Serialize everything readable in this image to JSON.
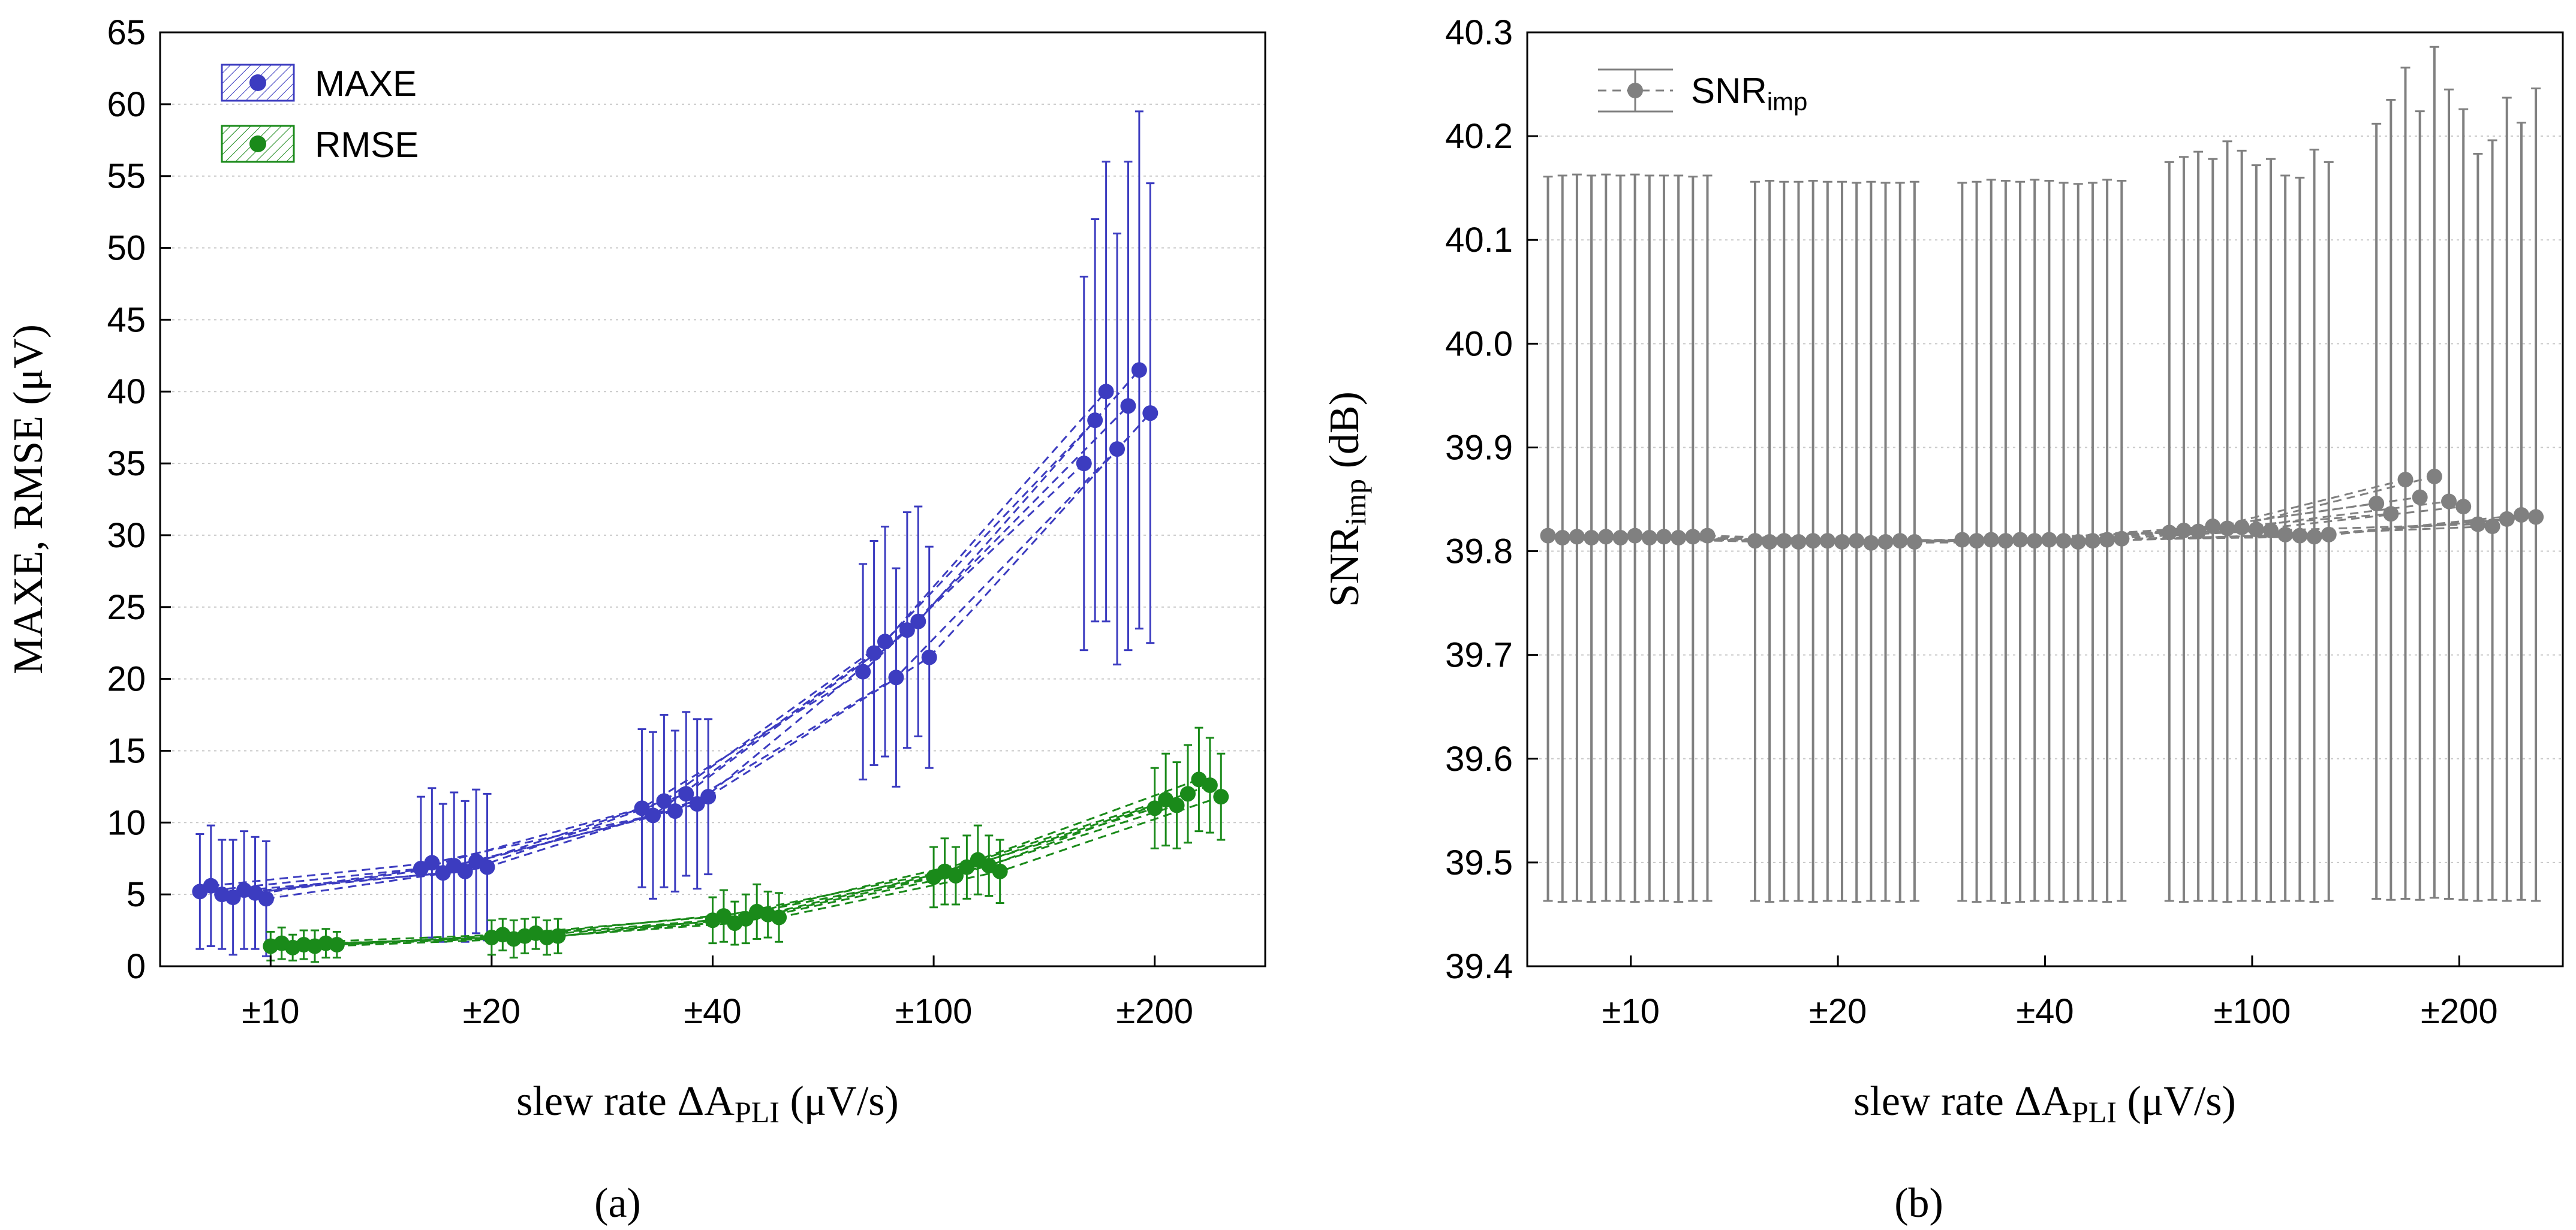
{
  "colors": {
    "maxe": "#3c3cc0",
    "rmse": "#1a8a1a",
    "snr": "#808080",
    "grid": "#c9c9c9"
  },
  "chart_data": [
    {
      "panel_label": "(a)",
      "type": "line",
      "ylabel": "MAXE, RMSE (μV)",
      "xlabel_main": "slew rate ΔA",
      "xlabel_sub": "PLI",
      "xlabel_unit": " (μV/s)",
      "categories": [
        "±10",
        "±20",
        "±40",
        "±100",
        "±200"
      ],
      "ylim": [
        0,
        65
      ],
      "yticks": [
        "0",
        "5",
        "10",
        "15",
        "20",
        "25",
        "30",
        "35",
        "40",
        "45",
        "50",
        "55",
        "60",
        "65"
      ],
      "legend": [
        "MAXE",
        "RMSE"
      ],
      "series": [
        {
          "name": "MAXE",
          "x": [
            -0.32,
            -0.27,
            -0.22,
            -0.17,
            -0.12,
            -0.07,
            -0.02,
            0.68,
            0.73,
            0.78,
            0.83,
            0.88,
            0.93,
            0.98,
            1.68,
            1.73,
            1.78,
            1.83,
            1.88,
            1.93,
            1.98,
            2.68,
            2.73,
            2.78,
            2.83,
            2.88,
            2.93,
            2.98,
            3.68,
            3.73,
            3.78,
            3.83,
            3.88,
            3.93,
            3.98
          ],
          "y": [
            5.2,
            5.6,
            5.0,
            4.8,
            5.3,
            5.1,
            4.7,
            6.8,
            7.2,
            6.5,
            7.0,
            6.6,
            7.3,
            6.9,
            11.0,
            10.5,
            11.5,
            10.8,
            12.0,
            11.3,
            11.8,
            20.5,
            21.8,
            22.6,
            20.1,
            23.4,
            24.0,
            21.5,
            35.0,
            38.0,
            40.0,
            36.0,
            39.0,
            41.5,
            38.5
          ],
          "err": [
            4.0,
            4.2,
            3.8,
            4.0,
            4.1,
            3.9,
            4.0,
            5.0,
            5.2,
            4.8,
            5.1,
            4.9,
            5.0,
            5.1,
            5.5,
            5.8,
            6.0,
            5.6,
            5.7,
            5.9,
            5.4,
            7.5,
            7.8,
            8.0,
            7.6,
            8.2,
            8.0,
            7.7,
            13.0,
            14.0,
            16.0,
            15.0,
            17.0,
            18.0,
            16.0
          ]
        },
        {
          "name": "RMSE",
          "x": [
            0.0,
            0.05,
            0.1,
            0.15,
            0.2,
            0.25,
            0.3,
            1.0,
            1.05,
            1.1,
            1.15,
            1.2,
            1.25,
            1.3,
            2.0,
            2.05,
            2.1,
            2.15,
            2.2,
            2.25,
            2.3,
            3.0,
            3.05,
            3.1,
            3.15,
            3.2,
            3.25,
            3.3,
            4.0,
            4.05,
            4.1,
            4.15,
            4.2,
            4.25,
            4.3
          ],
          "y": [
            1.4,
            1.6,
            1.3,
            1.5,
            1.4,
            1.6,
            1.5,
            2.0,
            2.2,
            1.9,
            2.1,
            2.3,
            2.0,
            2.1,
            3.2,
            3.5,
            3.0,
            3.3,
            3.8,
            3.6,
            3.4,
            6.2,
            6.6,
            6.3,
            6.9,
            7.4,
            7.0,
            6.6,
            11.0,
            11.6,
            11.2,
            12.0,
            13.0,
            12.6,
            11.8
          ],
          "err": [
            1.0,
            1.1,
            0.9,
            1.0,
            1.1,
            1.0,
            0.9,
            1.2,
            1.1,
            1.3,
            1.2,
            1.1,
            1.2,
            1.2,
            1.6,
            1.8,
            1.5,
            1.7,
            1.9,
            1.6,
            1.7,
            2.1,
            2.3,
            2.0,
            2.2,
            2.4,
            2.1,
            2.2,
            2.8,
            3.2,
            3.0,
            3.4,
            3.6,
            3.3,
            3.0
          ]
        }
      ]
    },
    {
      "panel_label": "(b)",
      "type": "line",
      "ylabel_main": "SNR",
      "ylabel_sub": "imp",
      "ylabel_unit": " (dB)",
      "xlabel_main": "slew rate ΔA",
      "xlabel_sub": "PLI",
      "xlabel_unit": " (μV/s)",
      "categories": [
        "±10",
        "±20",
        "±40",
        "±100",
        "±200"
      ],
      "ylim": [
        39.4,
        40.3
      ],
      "yticks": [
        "39.4",
        "39.5",
        "39.6",
        "39.7",
        "39.8",
        "39.9",
        "40.0",
        "40.1",
        "40.2",
        "40.3"
      ],
      "legend_main": "SNR",
      "legend_sub": "imp",
      "series": [
        {
          "name": "SNRimp",
          "x": [
            -0.4,
            -0.33,
            -0.26,
            -0.19,
            -0.12,
            -0.05,
            0.02,
            0.09,
            0.16,
            0.23,
            0.3,
            0.37,
            0.6,
            0.67,
            0.74,
            0.81,
            0.88,
            0.95,
            1.02,
            1.09,
            1.16,
            1.23,
            1.3,
            1.37,
            1.6,
            1.67,
            1.74,
            1.81,
            1.88,
            1.95,
            2.02,
            2.09,
            2.16,
            2.23,
            2.3,
            2.37,
            2.6,
            2.67,
            2.74,
            2.81,
            2.88,
            2.95,
            3.02,
            3.09,
            3.16,
            3.23,
            3.3,
            3.37,
            3.6,
            3.67,
            3.74,
            3.81,
            3.88,
            3.95,
            4.02,
            4.09,
            4.16,
            4.23,
            4.3,
            4.37
          ],
          "y": [
            39.815,
            39.813,
            39.814,
            39.813,
            39.814,
            39.813,
            39.815,
            39.813,
            39.814,
            39.813,
            39.814,
            39.815,
            39.81,
            39.809,
            39.81,
            39.809,
            39.81,
            39.81,
            39.809,
            39.81,
            39.808,
            39.809,
            39.81,
            39.809,
            39.811,
            39.81,
            39.811,
            39.81,
            39.811,
            39.81,
            39.811,
            39.81,
            39.809,
            39.81,
            39.811,
            39.812,
            39.818,
            39.82,
            39.819,
            39.824,
            39.822,
            39.823,
            39.821,
            39.82,
            39.816,
            39.815,
            39.814,
            39.816,
            39.846,
            39.836,
            39.869,
            39.852,
            39.872,
            39.848,
            39.843,
            39.826,
            39.824,
            39.831,
            39.835,
            39.833
          ],
          "lo": [
            39.463,
            39.462,
            39.463,
            39.462,
            39.463,
            39.463,
            39.462,
            39.463,
            39.463,
            39.462,
            39.463,
            39.463,
            39.463,
            39.462,
            39.463,
            39.463,
            39.462,
            39.463,
            39.463,
            39.462,
            39.463,
            39.463,
            39.462,
            39.463,
            39.463,
            39.462,
            39.463,
            39.461,
            39.462,
            39.463,
            39.463,
            39.462,
            39.463,
            39.463,
            39.462,
            39.463,
            39.463,
            39.462,
            39.463,
            39.463,
            39.462,
            39.463,
            39.463,
            39.462,
            39.463,
            39.463,
            39.462,
            39.463,
            39.465,
            39.464,
            39.465,
            39.464,
            39.466,
            39.465,
            39.464,
            39.463,
            39.464,
            39.463,
            39.464,
            39.463
          ],
          "hi": [
            40.161,
            40.162,
            40.163,
            40.162,
            40.163,
            40.162,
            40.163,
            40.162,
            40.162,
            40.162,
            40.161,
            40.162,
            40.156,
            40.157,
            40.156,
            40.156,
            40.157,
            40.156,
            40.156,
            40.155,
            40.156,
            40.155,
            40.155,
            40.156,
            40.155,
            40.156,
            40.158,
            40.157,
            40.156,
            40.158,
            40.157,
            40.155,
            40.154,
            40.155,
            40.158,
            40.157,
            40.175,
            40.18,
            40.185,
            40.178,
            40.195,
            40.186,
            40.172,
            40.178,
            40.162,
            40.16,
            40.187,
            40.175,
            40.212,
            40.235,
            40.266,
            40.224,
            40.286,
            40.245,
            40.226,
            40.183,
            40.196,
            40.237,
            40.213,
            40.246
          ]
        }
      ]
    }
  ]
}
